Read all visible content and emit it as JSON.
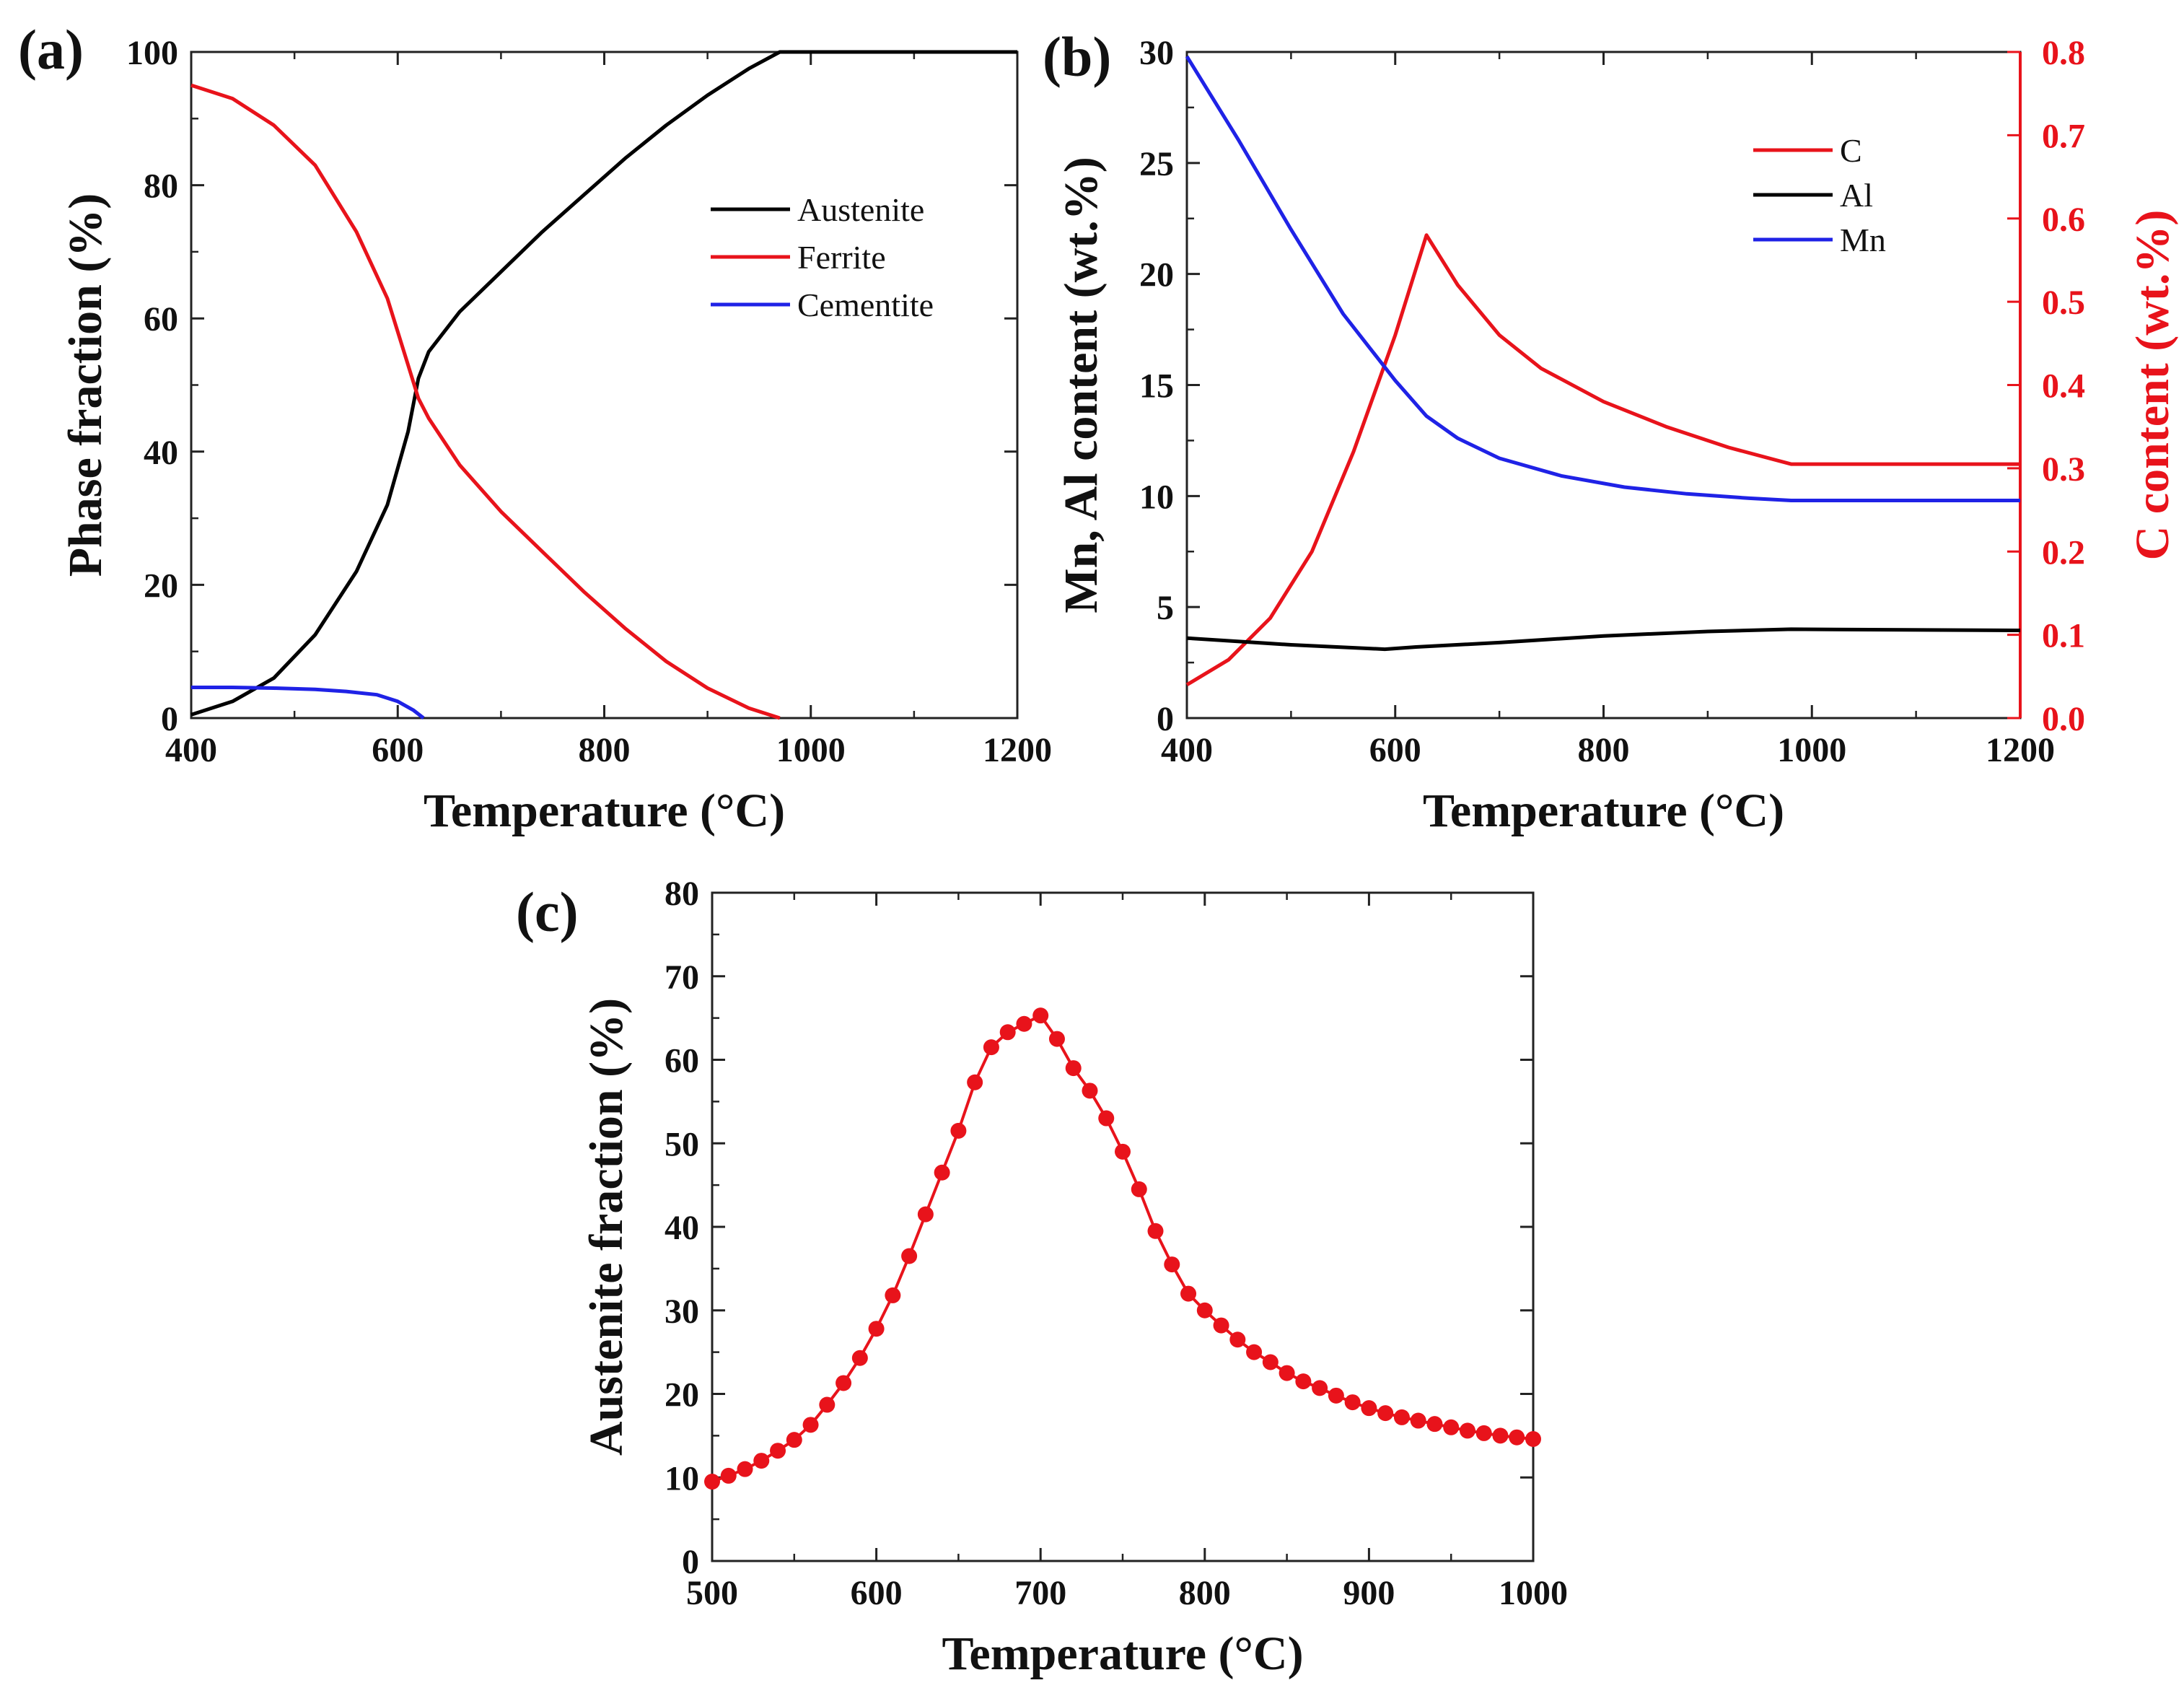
{
  "chart_data": [
    {
      "panel": "(a)",
      "type": "line",
      "xlabel": "Temperature (°C)",
      "ylabel": "Phase fraction (%)",
      "xlim": [
        400,
        1200
      ],
      "ylim": [
        0,
        100
      ],
      "xticks": [
        400,
        600,
        800,
        1000,
        1200
      ],
      "yticks": [
        0,
        20,
        40,
        60,
        80,
        100
      ],
      "legend_position": "upper-right",
      "series": [
        {
          "name": "Austenite",
          "color": "#000000",
          "x": [
            400,
            440,
            480,
            520,
            560,
            590,
            610,
            620,
            630,
            660,
            700,
            740,
            780,
            820,
            860,
            900,
            940,
            970,
            1000,
            1200
          ],
          "y": [
            0.5,
            2.5,
            6,
            12.5,
            22,
            32,
            43,
            51,
            55,
            61,
            67,
            73,
            78.5,
            84,
            89,
            93.5,
            97.5,
            100,
            100,
            100
          ]
        },
        {
          "name": "Ferrite",
          "color": "#e8131b",
          "x": [
            400,
            440,
            480,
            520,
            560,
            590,
            610,
            620,
            630,
            660,
            700,
            740,
            780,
            820,
            860,
            900,
            940,
            970
          ],
          "y": [
            95,
            93,
            89,
            83,
            73,
            63,
            53,
            48,
            45,
            38,
            31,
            25,
            19,
            13.5,
            8.5,
            4.5,
            1.5,
            0
          ]
        },
        {
          "name": "Cementite",
          "color": "#1f22e6",
          "x": [
            400,
            440,
            480,
            520,
            550,
            580,
            600,
            615,
            625
          ],
          "y": [
            4.6,
            4.6,
            4.5,
            4.3,
            4,
            3.5,
            2.5,
            1.2,
            0
          ]
        }
      ]
    },
    {
      "panel": "(b)",
      "type": "line",
      "xlabel": "Temperature (°C)",
      "ylabel": "Mn, Al content (wt.%)",
      "y2label": "C content (wt.%)",
      "y2color": "#e8131b",
      "xlim": [
        400,
        1200
      ],
      "ylim": [
        0,
        30
      ],
      "y2lim": [
        0,
        0.8
      ],
      "xticks": [
        400,
        600,
        800,
        1000,
        1200
      ],
      "yticks": [
        0,
        5,
        10,
        15,
        20,
        25,
        30
      ],
      "y2ticks": [
        "0.0",
        "0.1",
        "0.2",
        "0.3",
        "0.4",
        "0.5",
        "0.6",
        "0.7",
        "0.8"
      ],
      "legend_position": "upper-right",
      "series": [
        {
          "name": "C",
          "color": "#e8131b",
          "axis": "right",
          "x": [
            400,
            440,
            480,
            520,
            560,
            600,
            630,
            660,
            700,
            740,
            800,
            860,
            920,
            980,
            1200
          ],
          "y": [
            0.04,
            0.07,
            0.12,
            0.2,
            0.32,
            0.46,
            0.58,
            0.52,
            0.46,
            0.42,
            0.38,
            0.35,
            0.325,
            0.305,
            0.305
          ]
        },
        {
          "name": "Al",
          "color": "#000000",
          "axis": "left",
          "x": [
            400,
            500,
            590,
            620,
            700,
            800,
            900,
            980,
            1200
          ],
          "y": [
            3.6,
            3.3,
            3.1,
            3.2,
            3.4,
            3.7,
            3.9,
            4,
            3.95
          ]
        },
        {
          "name": "Mn",
          "color": "#1f22e6",
          "axis": "left",
          "x": [
            400,
            450,
            500,
            550,
            600,
            630,
            660,
            700,
            760,
            820,
            880,
            940,
            980,
            1200
          ],
          "y": [
            29.8,
            26,
            22,
            18.2,
            15.2,
            13.6,
            12.6,
            11.7,
            10.9,
            10.4,
            10.1,
            9.9,
            9.8,
            9.8
          ]
        }
      ]
    },
    {
      "panel": "(c)",
      "type": "scatter",
      "xlabel": "Temperature (°C)",
      "ylabel": "Austenite fraction (%)",
      "xlim": [
        500,
        1000
      ],
      "ylim": [
        0,
        80
      ],
      "xticks": [
        500,
        600,
        700,
        800,
        900,
        1000
      ],
      "yticks": [
        0,
        10,
        20,
        30,
        40,
        50,
        60,
        70,
        80
      ],
      "series": [
        {
          "name": "Austenite fraction",
          "color": "#e8131b",
          "x": [
            500,
            510,
            520,
            530,
            540,
            550,
            560,
            570,
            580,
            590,
            600,
            610,
            620,
            630,
            640,
            650,
            660,
            670,
            680,
            690,
            700,
            710,
            720,
            730,
            740,
            750,
            760,
            770,
            780,
            790,
            800,
            810,
            820,
            830,
            840,
            850,
            860,
            870,
            880,
            890,
            900,
            910,
            920,
            930,
            940,
            950,
            960,
            970,
            980,
            990,
            1000
          ],
          "y": [
            9.5,
            10.2,
            11,
            12,
            13.2,
            14.5,
            16.3,
            18.7,
            21.3,
            24.3,
            27.8,
            31.8,
            36.5,
            41.5,
            46.5,
            51.5,
            57.3,
            61.5,
            63.3,
            64.3,
            65.3,
            62.5,
            59,
            56.3,
            53,
            49,
            44.5,
            39.5,
            35.5,
            32,
            30,
            28.2,
            26.5,
            25,
            23.8,
            22.5,
            21.5,
            20.7,
            19.8,
            19,
            18.3,
            17.7,
            17.2,
            16.8,
            16.4,
            16,
            15.6,
            15.3,
            15,
            14.8,
            14.6
          ]
        }
      ]
    }
  ]
}
